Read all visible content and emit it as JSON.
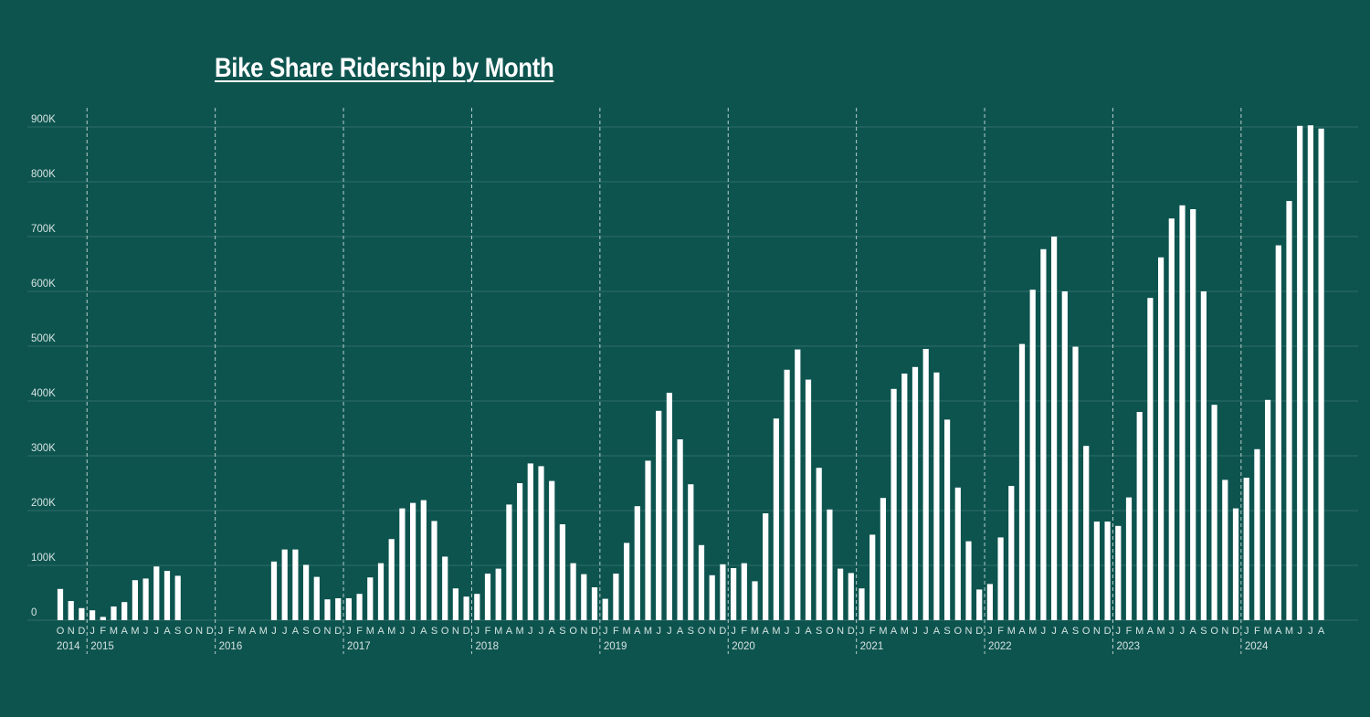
{
  "colors": {
    "background": "#0d544f",
    "bar": "#ffffff",
    "text": "#ffffff",
    "tick_text": "#d6e3e1",
    "gridline": "#2f6d68",
    "year_divider": "#b9cecb"
  },
  "chart_data": {
    "type": "bar",
    "title": "Bike Share Ridership by Month",
    "xlabel": "",
    "ylabel": "",
    "ylim": [
      0,
      900000
    ],
    "yticks": [
      0,
      100000,
      200000,
      300000,
      400000,
      500000,
      600000,
      700000,
      800000,
      900000
    ],
    "ytick_labels": [
      "0",
      "100K",
      "200K",
      "300K",
      "400K",
      "500K",
      "600K",
      "700K",
      "800K",
      "900K"
    ],
    "grid": true,
    "legend": "none",
    "year_labels": [
      "2014",
      "2015",
      "2016",
      "2017",
      "2018",
      "2019",
      "2020",
      "2021",
      "2022",
      "2023",
      "2024"
    ],
    "month_letters": [
      "J",
      "F",
      "M",
      "A",
      "M",
      "J",
      "J",
      "A",
      "S",
      "O",
      "N",
      "D"
    ],
    "series": [
      {
        "values": [
          {
            "year": "2014",
            "month": "O",
            "value": 57000
          },
          {
            "year": "2014",
            "month": "N",
            "value": 35000
          },
          {
            "year": "2014",
            "month": "D",
            "value": 22000
          },
          {
            "year": "2015",
            "month": "J",
            "value": 18000
          },
          {
            "year": "2015",
            "month": "F",
            "value": 6000
          },
          {
            "year": "2015",
            "month": "M",
            "value": 25000
          },
          {
            "year": "2015",
            "month": "A",
            "value": 33000
          },
          {
            "year": "2015",
            "month": "M",
            "value": 73000
          },
          {
            "year": "2015",
            "month": "J",
            "value": 76000
          },
          {
            "year": "2015",
            "month": "J",
            "value": 98000
          },
          {
            "year": "2015",
            "month": "A",
            "value": 90000
          },
          {
            "year": "2015",
            "month": "S",
            "value": 81000
          },
          {
            "year": "2015",
            "month": "O",
            "value": null
          },
          {
            "year": "2015",
            "month": "N",
            "value": null
          },
          {
            "year": "2015",
            "month": "D",
            "value": null
          },
          {
            "year": "2016",
            "month": "J",
            "value": null
          },
          {
            "year": "2016",
            "month": "F",
            "value": null
          },
          {
            "year": "2016",
            "month": "M",
            "value": null
          },
          {
            "year": "2016",
            "month": "A",
            "value": null
          },
          {
            "year": "2016",
            "month": "M",
            "value": null
          },
          {
            "year": "2016",
            "month": "J",
            "value": 107000
          },
          {
            "year": "2016",
            "month": "J",
            "value": 129000
          },
          {
            "year": "2016",
            "month": "A",
            "value": 129000
          },
          {
            "year": "2016",
            "month": "S",
            "value": 101000
          },
          {
            "year": "2016",
            "month": "O",
            "value": 79000
          },
          {
            "year": "2016",
            "month": "N",
            "value": 38000
          },
          {
            "year": "2016",
            "month": "D",
            "value": 40000
          },
          {
            "year": "2017",
            "month": "J",
            "value": 40000
          },
          {
            "year": "2017",
            "month": "F",
            "value": 48000
          },
          {
            "year": "2017",
            "month": "M",
            "value": 78000
          },
          {
            "year": "2017",
            "month": "A",
            "value": 104000
          },
          {
            "year": "2017",
            "month": "M",
            "value": 148000
          },
          {
            "year": "2017",
            "month": "J",
            "value": 204000
          },
          {
            "year": "2017",
            "month": "J",
            "value": 214000
          },
          {
            "year": "2017",
            "month": "A",
            "value": 219000
          },
          {
            "year": "2017",
            "month": "S",
            "value": 181000
          },
          {
            "year": "2017",
            "month": "O",
            "value": 116000
          },
          {
            "year": "2017",
            "month": "N",
            "value": 58000
          },
          {
            "year": "2017",
            "month": "D",
            "value": 43000
          },
          {
            "year": "2018",
            "month": "J",
            "value": 48000
          },
          {
            "year": "2018",
            "month": "F",
            "value": 85000
          },
          {
            "year": "2018",
            "month": "M",
            "value": 94000
          },
          {
            "year": "2018",
            "month": "A",
            "value": 211000
          },
          {
            "year": "2018",
            "month": "M",
            "value": 250000
          },
          {
            "year": "2018",
            "month": "J",
            "value": 286000
          },
          {
            "year": "2018",
            "month": "J",
            "value": 281000
          },
          {
            "year": "2018",
            "month": "A",
            "value": 254000
          },
          {
            "year": "2018",
            "month": "S",
            "value": 175000
          },
          {
            "year": "2018",
            "month": "O",
            "value": 104000
          },
          {
            "year": "2018",
            "month": "N",
            "value": 84000
          },
          {
            "year": "2018",
            "month": "D",
            "value": 60000
          },
          {
            "year": "2019",
            "month": "J",
            "value": 39000
          },
          {
            "year": "2019",
            "month": "F",
            "value": 85000
          },
          {
            "year": "2019",
            "month": "M",
            "value": 141000
          },
          {
            "year": "2019",
            "month": "A",
            "value": 208000
          },
          {
            "year": "2019",
            "month": "M",
            "value": 291000
          },
          {
            "year": "2019",
            "month": "J",
            "value": 382000
          },
          {
            "year": "2019",
            "month": "J",
            "value": 415000
          },
          {
            "year": "2019",
            "month": "A",
            "value": 330000
          },
          {
            "year": "2019",
            "month": "S",
            "value": 248000
          },
          {
            "year": "2019",
            "month": "O",
            "value": 137000
          },
          {
            "year": "2019",
            "month": "N",
            "value": 82000
          },
          {
            "year": "2019",
            "month": "D",
            "value": 102000
          },
          {
            "year": "2020",
            "month": "J",
            "value": 95000
          },
          {
            "year": "2020",
            "month": "F",
            "value": 104000
          },
          {
            "year": "2020",
            "month": "M",
            "value": 71000
          },
          {
            "year": "2020",
            "month": "A",
            "value": 195000
          },
          {
            "year": "2020",
            "month": "M",
            "value": 368000
          },
          {
            "year": "2020",
            "month": "J",
            "value": 457000
          },
          {
            "year": "2020",
            "month": "J",
            "value": 494000
          },
          {
            "year": "2020",
            "month": "A",
            "value": 439000
          },
          {
            "year": "2020",
            "month": "S",
            "value": 278000
          },
          {
            "year": "2020",
            "month": "O",
            "value": 202000
          },
          {
            "year": "2020",
            "month": "N",
            "value": 94000
          },
          {
            "year": "2020",
            "month": "D",
            "value": 86000
          },
          {
            "year": "2021",
            "month": "J",
            "value": 58000
          },
          {
            "year": "2021",
            "month": "F",
            "value": 156000
          },
          {
            "year": "2021",
            "month": "M",
            "value": 223000
          },
          {
            "year": "2021",
            "month": "A",
            "value": 422000
          },
          {
            "year": "2021",
            "month": "M",
            "value": 450000
          },
          {
            "year": "2021",
            "month": "J",
            "value": 462000
          },
          {
            "year": "2021",
            "month": "J",
            "value": 495000
          },
          {
            "year": "2021",
            "month": "A",
            "value": 452000
          },
          {
            "year": "2021",
            "month": "S",
            "value": 366000
          },
          {
            "year": "2021",
            "month": "O",
            "value": 242000
          },
          {
            "year": "2021",
            "month": "N",
            "value": 144000
          },
          {
            "year": "2021",
            "month": "D",
            "value": 56000
          },
          {
            "year": "2022",
            "month": "J",
            "value": 66000
          },
          {
            "year": "2022",
            "month": "F",
            "value": 151000
          },
          {
            "year": "2022",
            "month": "M",
            "value": 245000
          },
          {
            "year": "2022",
            "month": "A",
            "value": 504000
          },
          {
            "year": "2022",
            "month": "M",
            "value": 603000
          },
          {
            "year": "2022",
            "month": "J",
            "value": 677000
          },
          {
            "year": "2022",
            "month": "J",
            "value": 700000
          },
          {
            "year": "2022",
            "month": "A",
            "value": 600000
          },
          {
            "year": "2022",
            "month": "S",
            "value": 499000
          },
          {
            "year": "2022",
            "month": "O",
            "value": 318000
          },
          {
            "year": "2022",
            "month": "N",
            "value": 180000
          },
          {
            "year": "2022",
            "month": "D",
            "value": 180000
          },
          {
            "year": "2023",
            "month": "J",
            "value": 172000
          },
          {
            "year": "2023",
            "month": "F",
            "value": 224000
          },
          {
            "year": "2023",
            "month": "M",
            "value": 380000
          },
          {
            "year": "2023",
            "month": "A",
            "value": 588000
          },
          {
            "year": "2023",
            "month": "M",
            "value": 662000
          },
          {
            "year": "2023",
            "month": "J",
            "value": 733000
          },
          {
            "year": "2023",
            "month": "J",
            "value": 757000
          },
          {
            "year": "2023",
            "month": "A",
            "value": 750000
          },
          {
            "year": "2023",
            "month": "S",
            "value": 600000
          },
          {
            "year": "2023",
            "month": "O",
            "value": 393000
          },
          {
            "year": "2023",
            "month": "N",
            "value": 256000
          },
          {
            "year": "2023",
            "month": "D",
            "value": 204000
          },
          {
            "year": "2024",
            "month": "J",
            "value": 260000
          },
          {
            "year": "2024",
            "month": "F",
            "value": 312000
          },
          {
            "year": "2024",
            "month": "M",
            "value": 402000
          },
          {
            "year": "2024",
            "month": "A",
            "value": 684000
          },
          {
            "year": "2024",
            "month": "M",
            "value": 765000
          },
          {
            "year": "2024",
            "month": "J",
            "value": 902000
          },
          {
            "year": "2024",
            "month": "J",
            "value": 903000
          },
          {
            "year": "2024",
            "month": "A",
            "value": 897000
          }
        ]
      }
    ]
  }
}
